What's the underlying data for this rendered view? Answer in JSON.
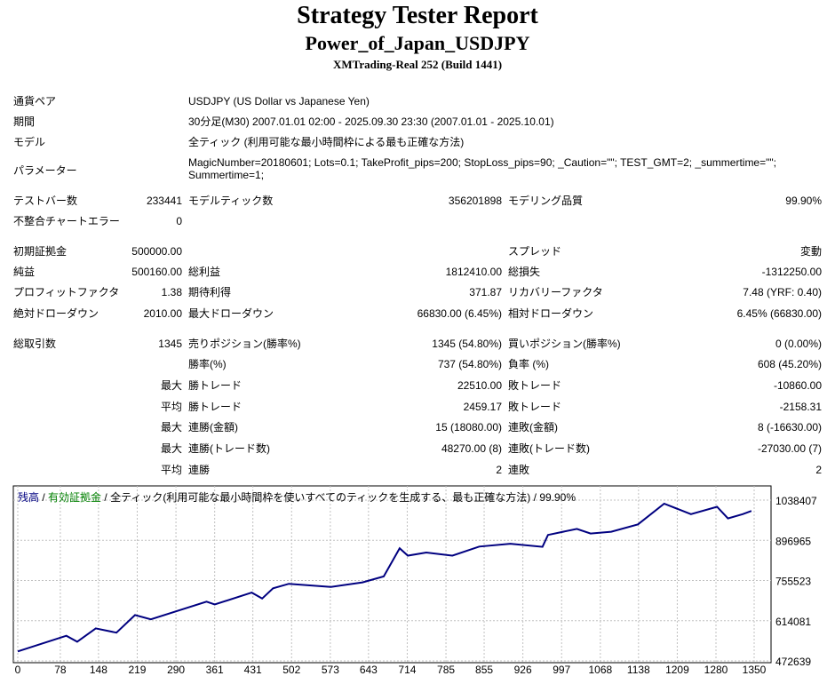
{
  "header": {
    "title": "Strategy Tester Report",
    "subtitle": "Power_of_Japan_USDJPY",
    "server": "XMTrading-Real 252 (Build 1441)"
  },
  "info": [
    {
      "label": "通貨ペア",
      "value": "USDJPY (US Dollar vs Japanese Yen)"
    },
    {
      "label": "期間",
      "value": "30分足(M30) 2007.01.01 02:00 - 2025.09.30 23:30 (2007.01.01 - 2025.10.01)"
    },
    {
      "label": "モデル",
      "value": "全ティック (利用可能な最小時間枠による最も正確な方法)"
    },
    {
      "label": "パラメーター",
      "value": "MagicNumber=20180601; Lots=0.1; TakeProfit_pips=200; StopLoss_pips=90; _Caution=\"\"; TEST_GMT=2; _summertime=\"\"; Summertime=1;"
    }
  ],
  "stats": [
    [
      "テストバー数",
      "233441",
      "モデルティック数",
      "356201898",
      "モデリング品質",
      "99.90%"
    ],
    [
      "不整合チャートエラー",
      "0",
      "",
      "",
      "",
      ""
    ],
    [
      "初期証拠金",
      "500000.00",
      "",
      "",
      "スプレッド",
      "変動"
    ],
    [
      "純益",
      "500160.00",
      "総利益",
      "1812410.00",
      "総損失",
      "-1312250.00"
    ],
    [
      "プロフィットファクタ",
      "1.38",
      "期待利得",
      "371.87",
      "リカバリーファクタ",
      "7.48 (YRF: 0.40)"
    ],
    [
      "絶対ドローダウン",
      "2010.00",
      "最大ドローダウン",
      "66830.00 (6.45%)",
      "相対ドローダウン",
      "6.45% (66830.00)"
    ],
    [
      "総取引数",
      "1345",
      "売りポジション(勝率%)",
      "1345 (54.80%)",
      "買いポジション(勝率%)",
      "0 (0.00%)"
    ],
    [
      "",
      "",
      "勝率(%)",
      "737 (54.80%)",
      "負率 (%)",
      "608 (45.20%)"
    ],
    [
      "",
      "最大",
      "勝トレード",
      "22510.00",
      "敗トレード",
      "-10860.00"
    ],
    [
      "",
      "平均",
      "勝トレード",
      "2459.17",
      "敗トレード",
      "-2158.31"
    ],
    [
      "",
      "最大",
      "連勝(金額)",
      "15 (18080.00)",
      "連敗(金額)",
      "8 (-16630.00)"
    ],
    [
      "",
      "最大",
      "連勝(トレード数)",
      "48270.00 (8)",
      "連敗(トレード数)",
      "-27030.00 (7)"
    ],
    [
      "",
      "平均",
      "連勝",
      "2",
      "連敗",
      "2"
    ]
  ],
  "chart_data": {
    "type": "line",
    "legend": {
      "balance": "残高",
      "sep1": " / ",
      "equity": "有効証拠金",
      "sep2": " / ",
      "model": "全ティック(利用可能な最小時間枠を使いすべてのティックを生成する、最も正確な方法)",
      "sep3": " / ",
      "quality": "99.90%"
    },
    "colors": {
      "balance": "#000080",
      "equity": "#008000",
      "grid": "#c0c0c0"
    },
    "xticks": [
      "0",
      "78",
      "148",
      "219",
      "290",
      "361",
      "431",
      "502",
      "573",
      "643",
      "714",
      "785",
      "855",
      "926",
      "997",
      "1068",
      "1138",
      "1209",
      "1280",
      "1350"
    ],
    "yticks": [
      "1038407",
      "896965",
      "755523",
      "614081",
      "472639"
    ],
    "xlim": [
      0,
      1350
    ],
    "ylim": [
      472639,
      1038407
    ],
    "grid": true,
    "series": [
      {
        "x": [
          0,
          89,
          109,
          143,
          181,
          215,
          244,
          346,
          361,
          429,
          448,
          468,
          497,
          574,
          632,
          671,
          700,
          715,
          749,
          797,
          846,
          903,
          962,
          972,
          1025,
          1050,
          1088,
          1137,
          1185,
          1234,
          1282,
          1302,
          1329,
          1345
        ],
        "y": [
          506000,
          561000,
          540000,
          587000,
          572000,
          634000,
          619000,
          681000,
          671000,
          713000,
          692000,
          728000,
          744000,
          733000,
          749000,
          770000,
          869000,
          843000,
          854000,
          843000,
          875000,
          885000,
          874000,
          916000,
          937000,
          921000,
          927000,
          953000,
          1026000,
          989000,
          1015000,
          974000,
          989000,
          1000160
        ]
      }
    ]
  }
}
